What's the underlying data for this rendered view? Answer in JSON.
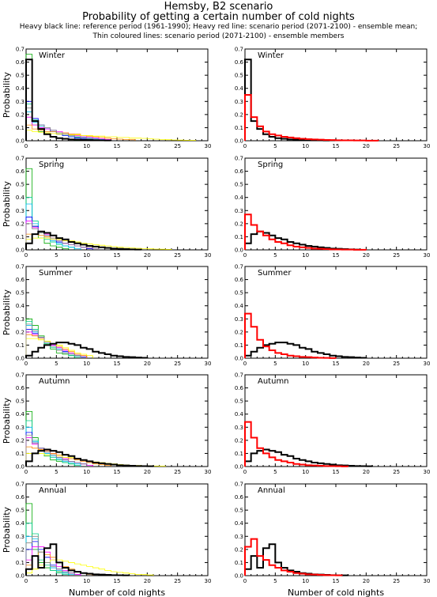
{
  "header": {
    "title": "Hemsby, B2 scenario",
    "subtitle": "Probability of getting a certain number of cold nights",
    "legend_line1": "Heavy black line: reference period (1961-1990); Heavy red line: scenario period (2071-2100) - ensemble mean;",
    "legend_line2": "Thin coloured lines: scenario period (2071-2100) - ensemble members"
  },
  "colors": {
    "reference": "#000000",
    "scenario_mean": "#ff0000",
    "members": [
      "#00aa00",
      "#00cc88",
      "#00bbee",
      "#0000ff",
      "#ff00ff",
      "#ff8800",
      "#ffff00",
      "#888888"
    ]
  },
  "chart_data": {
    "type": "line",
    "style": "step histogram",
    "ylabel": "Probability",
    "xlabel": "Number of cold nights",
    "xlim": [
      0,
      30
    ],
    "ylim": [
      0,
      0.7
    ],
    "xticks": [
      0,
      5,
      10,
      15,
      20,
      25,
      30
    ],
    "yticks": [
      0.0,
      0.1,
      0.2,
      0.3,
      0.4,
      0.5,
      0.6,
      0.7
    ],
    "panels": [
      {
        "season": "Winter",
        "reference": [
          0.62,
          0.15,
          0.09,
          0.05,
          0.03,
          0.02,
          0.015,
          0.01,
          0.008,
          0.006,
          0.005,
          0.004,
          0.003,
          0.002
        ],
        "scenario_mean": [
          0.35,
          0.18,
          0.11,
          0.07,
          0.05,
          0.04,
          0.03,
          0.025,
          0.02,
          0.015,
          0.012,
          0.01,
          0.008,
          0.006,
          0.005,
          0.004,
          0.003,
          0.003,
          0.002,
          0.002,
          0.001,
          0.001
        ],
        "members": [
          [
            0.66,
            0.12,
            0.07,
            0.05,
            0.03,
            0.02,
            0.015,
            0.01,
            0.005
          ],
          [
            0.28,
            0.16,
            0.12,
            0.09,
            0.07,
            0.05,
            0.04,
            0.03,
            0.025,
            0.02,
            0.015,
            0.012,
            0.01
          ],
          [
            0.22,
            0.14,
            0.11,
            0.09,
            0.08,
            0.06,
            0.05,
            0.04,
            0.03,
            0.025,
            0.02,
            0.015,
            0.01
          ],
          [
            0.3,
            0.17,
            0.12,
            0.09,
            0.07,
            0.05,
            0.04,
            0.03,
            0.02,
            0.015,
            0.01
          ],
          [
            0.18,
            0.12,
            0.1,
            0.09,
            0.08,
            0.07,
            0.06,
            0.05,
            0.04,
            0.03,
            0.025,
            0.02,
            0.015,
            0.01
          ],
          [
            0.12,
            0.09,
            0.08,
            0.07,
            0.07,
            0.06,
            0.06,
            0.05,
            0.05,
            0.04,
            0.035,
            0.03,
            0.025,
            0.02,
            0.015,
            0.012,
            0.01,
            0.008
          ],
          [
            0.08,
            0.07,
            0.065,
            0.06,
            0.055,
            0.05,
            0.05,
            0.045,
            0.045,
            0.04,
            0.04,
            0.035,
            0.035,
            0.03,
            0.03,
            0.025,
            0.025,
            0.02,
            0.02,
            0.018,
            0.015,
            0.012,
            0.01,
            0.008,
            0.006,
            0.005,
            0.004,
            0.003
          ],
          [
            0.25,
            0.15,
            0.12,
            0.1,
            0.08,
            0.06,
            0.05,
            0.04,
            0.03,
            0.02,
            0.015,
            0.01
          ]
        ]
      },
      {
        "season": "Spring",
        "reference": [
          0.05,
          0.12,
          0.14,
          0.13,
          0.11,
          0.09,
          0.08,
          0.06,
          0.05,
          0.04,
          0.03,
          0.025,
          0.02,
          0.015,
          0.01,
          0.008,
          0.006,
          0.004,
          0.002
        ],
        "scenario_mean": [
          0.27,
          0.19,
          0.14,
          0.11,
          0.08,
          0.06,
          0.05,
          0.035,
          0.025,
          0.02,
          0.015,
          0.01,
          0.008,
          0.006,
          0.004,
          0.003,
          0.002,
          0.002,
          0.001,
          0.001
        ],
        "members": [
          [
            0.62,
            0.18,
            0.09,
            0.05,
            0.03,
            0.02,
            0.01
          ],
          [
            0.4,
            0.22,
            0.13,
            0.08,
            0.06,
            0.04,
            0.03,
            0.02
          ],
          [
            0.35,
            0.2,
            0.14,
            0.09,
            0.07,
            0.05,
            0.03,
            0.02,
            0.01
          ],
          [
            0.25,
            0.18,
            0.14,
            0.11,
            0.08,
            0.06,
            0.05,
            0.04,
            0.03,
            0.02,
            0.01
          ],
          [
            0.22,
            0.17,
            0.14,
            0.12,
            0.09,
            0.07,
            0.05,
            0.04,
            0.03,
            0.02,
            0.015,
            0.01
          ],
          [
            0.12,
            0.12,
            0.11,
            0.1,
            0.09,
            0.08,
            0.07,
            0.06,
            0.05,
            0.04,
            0.03,
            0.025,
            0.02,
            0.015,
            0.01
          ],
          [
            0.08,
            0.09,
            0.09,
            0.09,
            0.08,
            0.08,
            0.07,
            0.07,
            0.06,
            0.05,
            0.045,
            0.04,
            0.035,
            0.03,
            0.025,
            0.02,
            0.018,
            0.015,
            0.012,
            0.01,
            0.008,
            0.006,
            0.005,
            0.004
          ],
          [
            0.2,
            0.16,
            0.13,
            0.11,
            0.09,
            0.07,
            0.05,
            0.04,
            0.03,
            0.02,
            0.015,
            0.01
          ]
        ]
      },
      {
        "season": "Summer",
        "reference": [
          0.02,
          0.05,
          0.08,
          0.1,
          0.11,
          0.12,
          0.12,
          0.11,
          0.1,
          0.08,
          0.07,
          0.05,
          0.04,
          0.03,
          0.02,
          0.015,
          0.01,
          0.008,
          0.005,
          0.003
        ],
        "scenario_mean": [
          0.34,
          0.24,
          0.14,
          0.09,
          0.06,
          0.04,
          0.03,
          0.02,
          0.015,
          0.01,
          0.008,
          0.005,
          0.003,
          0.002,
          0.001
        ],
        "members": [
          [
            0.3,
            0.25,
            0.17,
            0.11,
            0.07,
            0.04,
            0.03,
            0.02
          ],
          [
            0.28,
            0.22,
            0.16,
            0.11,
            0.08,
            0.06,
            0.04,
            0.02,
            0.01
          ],
          [
            0.25,
            0.2,
            0.15,
            0.12,
            0.09,
            0.07,
            0.05,
            0.03,
            0.02
          ],
          [
            0.22,
            0.19,
            0.16,
            0.12,
            0.1,
            0.08,
            0.05,
            0.04,
            0.02,
            0.01
          ],
          [
            0.2,
            0.18,
            0.15,
            0.13,
            0.1,
            0.08,
            0.06,
            0.04,
            0.03,
            0.02
          ],
          [
            0.18,
            0.17,
            0.15,
            0.13,
            0.11,
            0.09,
            0.07,
            0.05,
            0.03,
            0.02
          ],
          [
            0.15,
            0.15,
            0.14,
            0.13,
            0.11,
            0.1,
            0.08,
            0.06,
            0.04,
            0.03,
            0.02
          ],
          [
            0.26,
            0.21,
            0.16,
            0.12,
            0.09,
            0.06,
            0.04,
            0.03,
            0.02
          ]
        ]
      },
      {
        "season": "Autumn",
        "reference": [
          0.04,
          0.1,
          0.12,
          0.13,
          0.12,
          0.11,
          0.09,
          0.08,
          0.06,
          0.05,
          0.04,
          0.03,
          0.025,
          0.02,
          0.015,
          0.01,
          0.008,
          0.006,
          0.004,
          0.003,
          0.002
        ],
        "scenario_mean": [
          0.34,
          0.22,
          0.14,
          0.1,
          0.07,
          0.05,
          0.04,
          0.03,
          0.02,
          0.015,
          0.01,
          0.008,
          0.006,
          0.004,
          0.003,
          0.002,
          0.001
        ],
        "members": [
          [
            0.42,
            0.22,
            0.12,
            0.08,
            0.05,
            0.04,
            0.03,
            0.02
          ],
          [
            0.35,
            0.2,
            0.14,
            0.09,
            0.07,
            0.05,
            0.03,
            0.02,
            0.01
          ],
          [
            0.3,
            0.19,
            0.14,
            0.1,
            0.08,
            0.06,
            0.04,
            0.03,
            0.02
          ],
          [
            0.26,
            0.18,
            0.14,
            0.11,
            0.09,
            0.07,
            0.05,
            0.04,
            0.03,
            0.02
          ],
          [
            0.22,
            0.17,
            0.14,
            0.12,
            0.1,
            0.08,
            0.06,
            0.04,
            0.03,
            0.02,
            0.01
          ],
          [
            0.15,
            0.14,
            0.13,
            0.12,
            0.1,
            0.09,
            0.07,
            0.06,
            0.05,
            0.04,
            0.03,
            0.02,
            0.015,
            0.01
          ],
          [
            0.1,
            0.1,
            0.1,
            0.09,
            0.09,
            0.08,
            0.07,
            0.07,
            0.06,
            0.05,
            0.04,
            0.035,
            0.03,
            0.025,
            0.02,
            0.015,
            0.012,
            0.01,
            0.008,
            0.006,
            0.005,
            0.004,
            0.003
          ],
          [
            0.24,
            0.18,
            0.14,
            0.11,
            0.09,
            0.07,
            0.05,
            0.04,
            0.03,
            0.02
          ]
        ]
      },
      {
        "season": "Annual",
        "reference": [
          0.05,
          0.15,
          0.06,
          0.21,
          0.24,
          0.1,
          0.06,
          0.04,
          0.03,
          0.02,
          0.015,
          0.01,
          0.008,
          0.006,
          0.004,
          0.003,
          0.002
        ],
        "scenario_mean": [
          0.22,
          0.28,
          0.15,
          0.12,
          0.08,
          0.06,
          0.04,
          0.03,
          0.02,
          0.015,
          0.01,
          0.008,
          0.006,
          0.004,
          0.003,
          0.002
        ],
        "members": [
          [
            0.55,
            0.2,
            0.1,
            0.06,
            0.04,
            0.03,
            0.02
          ],
          [
            0.4,
            0.32,
            0.12,
            0.08,
            0.04,
            0.02,
            0.01
          ],
          [
            0.3,
            0.28,
            0.18,
            0.1,
            0.06,
            0.04,
            0.02,
            0.01
          ],
          [
            0.2,
            0.26,
            0.2,
            0.14,
            0.08,
            0.05,
            0.03,
            0.02,
            0.01
          ],
          [
            0.12,
            0.22,
            0.22,
            0.18,
            0.12,
            0.07,
            0.04,
            0.02,
            0.01
          ],
          [
            0.08,
            0.15,
            0.18,
            0.16,
            0.14,
            0.1,
            0.07,
            0.05,
            0.03,
            0.02,
            0.01
          ],
          [
            0.02,
            0.05,
            0.08,
            0.1,
            0.12,
            0.12,
            0.11,
            0.1,
            0.09,
            0.08,
            0.07,
            0.06,
            0.05,
            0.04,
            0.03,
            0.025,
            0.02,
            0.015,
            0.01,
            0.008,
            0.005
          ],
          [
            0.25,
            0.3,
            0.18,
            0.1,
            0.07,
            0.05,
            0.03,
            0.02
          ]
        ]
      }
    ]
  }
}
